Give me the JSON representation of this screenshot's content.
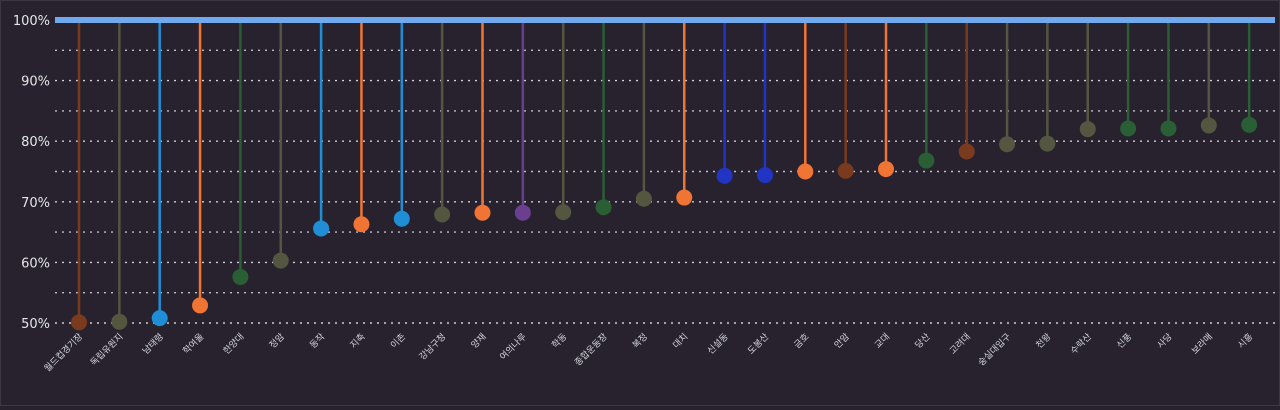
{
  "chart_data": {
    "type": "lollipop",
    "title": "",
    "xlabel": "",
    "ylabel": "",
    "ylim": [
      50,
      100
    ],
    "yticks": [
      "50%",
      "60%",
      "70%",
      "80%",
      "90%",
      "100%"
    ],
    "baseline_label": "100%",
    "categories": [
      "월드컵경기장",
      "독립유원지",
      "남태령",
      "학여울",
      "한양대",
      "정암",
      "동작",
      "지축",
      "이촌",
      "강남구청",
      "양재",
      "여의나루",
      "학동",
      "종합운동장",
      "복정",
      "대치",
      "신설동",
      "도봉산",
      "금호",
      "안암",
      "교대",
      "당산",
      "고려대",
      "숭실대입구",
      "천왕",
      "수락산",
      "신풍",
      "사당",
      "보라매",
      "시흥"
    ],
    "values": [
      50.1,
      50.2,
      50.8,
      52.9,
      57.6,
      60.3,
      65.6,
      66.3,
      67.2,
      67.9,
      68.2,
      68.2,
      68.3,
      69.1,
      70.5,
      70.7,
      74.3,
      74.4,
      75.0,
      75.1,
      75.4,
      76.8,
      78.3,
      79.5,
      79.6,
      82.0,
      82.1,
      82.1,
      82.6,
      82.7
    ],
    "colors": [
      "#7a3a1e",
      "#545640",
      "#1f8ed6",
      "#f07434",
      "#2a5e34",
      "#545640",
      "#1f8ed6",
      "#f07434",
      "#1f8ed6",
      "#545640",
      "#f07434",
      "#6a3f90",
      "#545640",
      "#2a5e34",
      "#545640",
      "#f07434",
      "#2234c4",
      "#2234c4",
      "#f07434",
      "#7a3a1e",
      "#f07434",
      "#2a5e34",
      "#7a3a1e",
      "#545640",
      "#545640",
      "#545640",
      "#2a5e34",
      "#2a5e34",
      "#545640",
      "#2a5e34"
    ],
    "baseline_color": "#6fa9ef"
  }
}
